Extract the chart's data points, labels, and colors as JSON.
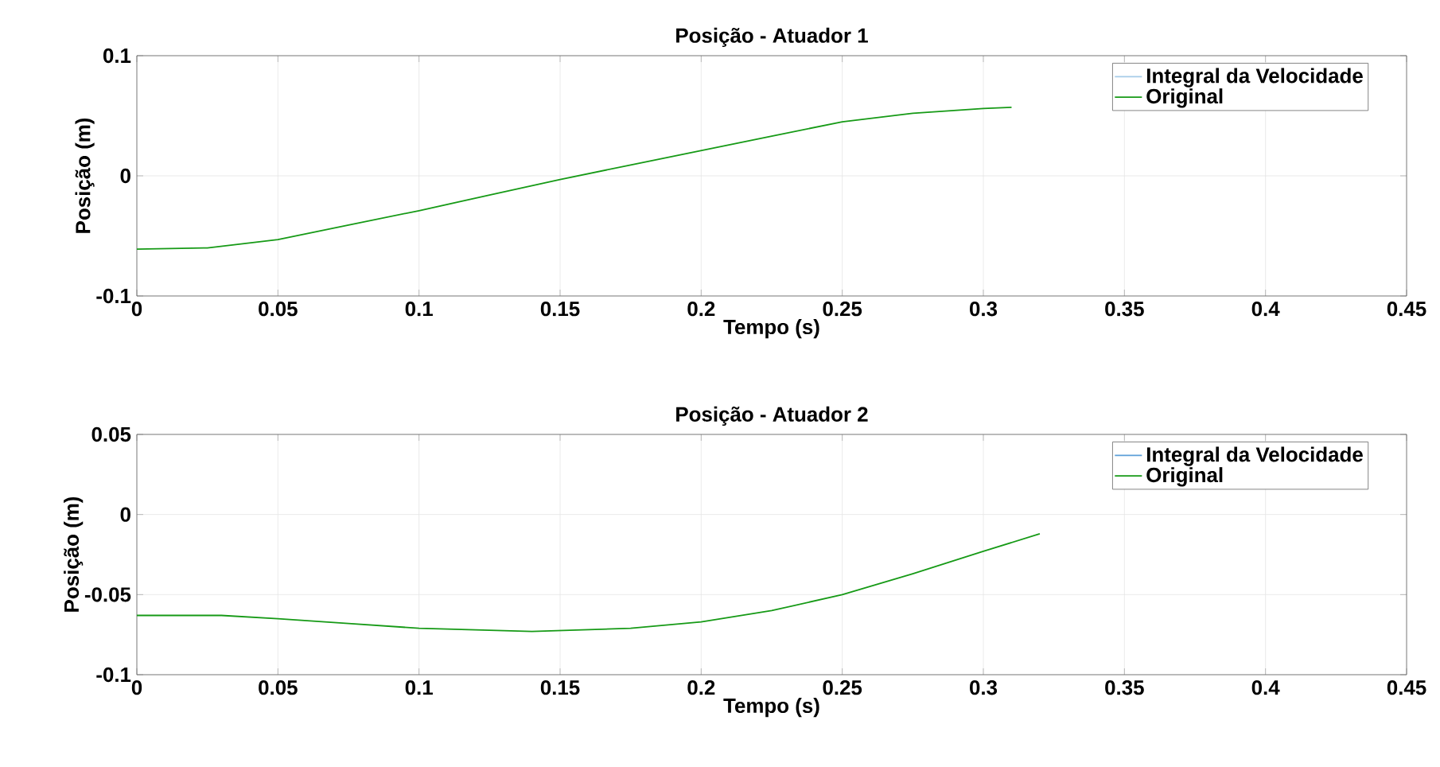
{
  "chart_data": [
    {
      "type": "line",
      "title": "Posição - Atuador 1",
      "xlabel": "Tempo (s)",
      "ylabel": "Posição (m)",
      "xlim": [
        0,
        0.45
      ],
      "ylim": [
        -0.1,
        0.1
      ],
      "xticks": [
        0,
        0.05,
        0.1,
        0.15,
        0.2,
        0.25,
        0.3,
        0.35,
        0.4,
        0.45
      ],
      "yticks": [
        -0.1,
        0,
        0.1
      ],
      "grid": true,
      "legend": "top right",
      "x": [
        0,
        0.025,
        0.05,
        0.075,
        0.1,
        0.125,
        0.15,
        0.175,
        0.2,
        0.225,
        0.25,
        0.275,
        0.3,
        0.31
      ],
      "series": [
        {
          "name": "Integral da Velocidade",
          "color": "#a6cbe8",
          "values": [
            null,
            null,
            null,
            null,
            null,
            null,
            null,
            null,
            null,
            null,
            null,
            null,
            null,
            null
          ]
        },
        {
          "name": "Original",
          "color": "#169a16",
          "values": [
            -0.061,
            -0.06,
            -0.053,
            -0.041,
            -0.029,
            -0.016,
            -0.003,
            0.009,
            0.021,
            0.033,
            0.045,
            0.052,
            0.056,
            0.057
          ]
        }
      ]
    },
    {
      "type": "line",
      "title": "Posição - Atuador 2",
      "xlabel": "Tempo (s)",
      "ylabel": "Posição (m)",
      "xlim": [
        0,
        0.45
      ],
      "ylim": [
        -0.1,
        0.05
      ],
      "xticks": [
        0,
        0.05,
        0.1,
        0.15,
        0.2,
        0.25,
        0.3,
        0.35,
        0.4,
        0.45
      ],
      "yticks": [
        -0.1,
        -0.05,
        0,
        0.05
      ],
      "grid": true,
      "legend": "top right",
      "x": [
        0,
        0.03,
        0.05,
        0.075,
        0.1,
        0.14,
        0.175,
        0.2,
        0.225,
        0.25,
        0.275,
        0.3,
        0.32
      ],
      "series": [
        {
          "name": "Integral da Velocidade",
          "color": "#5c9fd8",
          "values": [
            null,
            null,
            null,
            null,
            null,
            null,
            null,
            null,
            null,
            null,
            null,
            null,
            null
          ]
        },
        {
          "name": "Original",
          "color": "#169a16",
          "values": [
            -0.063,
            -0.063,
            -0.065,
            -0.068,
            -0.071,
            -0.073,
            -0.071,
            -0.067,
            -0.06,
            -0.05,
            -0.037,
            -0.023,
            -0.012
          ]
        }
      ]
    }
  ]
}
